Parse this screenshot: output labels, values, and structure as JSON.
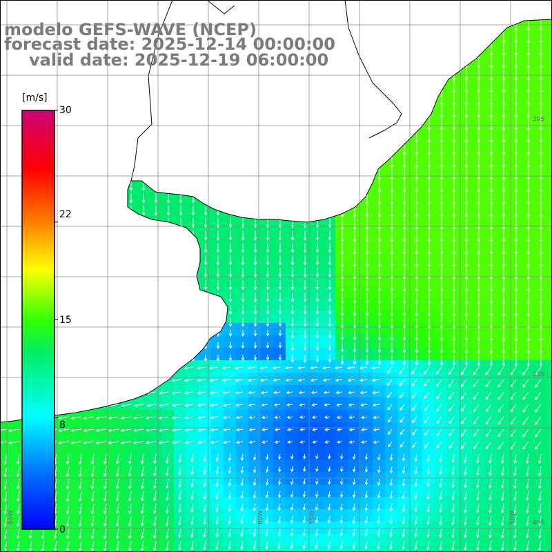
{
  "header": {
    "model": "modelo GEFS-WAVE (NCEP)",
    "forecast": "forecast date: 2025-12-14 00:00:00",
    "valid": "valid date: 2025-12-19 06:00:00"
  },
  "colorbar": {
    "unit": "[m/s]",
    "ticks": [
      "30",
      "22",
      "15",
      "8",
      "0"
    ],
    "tick_values": [
      30,
      22,
      15,
      8,
      0
    ],
    "range": [
      0,
      30
    ],
    "colors": [
      "#0000ff",
      "#00aaff",
      "#00ffff",
      "#00ff00",
      "#ffff00",
      "#ff8800",
      "#ff0000",
      "#cc0066"
    ]
  },
  "map": {
    "lon_labels": [
      "65W",
      "60W",
      "55W",
      "50W"
    ],
    "lat_labels": [
      "30S",
      "35S",
      "40S"
    ],
    "field": "wind speed",
    "land_color": "#ffffff"
  }
}
